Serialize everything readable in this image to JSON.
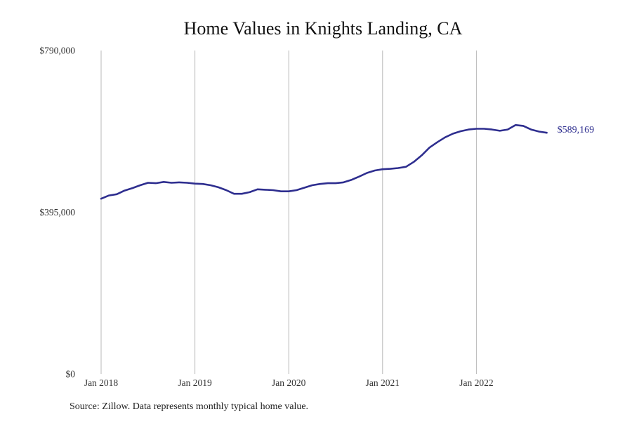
{
  "chart_data": {
    "type": "line",
    "title": "Home Values in Knights Landing, CA",
    "xlabel": "",
    "ylabel": "",
    "ylim": [
      0,
      790000
    ],
    "y_ticks": [
      {
        "value": 0,
        "label": "$0"
      },
      {
        "value": 395000,
        "label": "$395,000"
      },
      {
        "value": 790000,
        "label": "$790,000"
      }
    ],
    "x_ticks": [
      {
        "value": "2018-01",
        "label": "Jan 2018"
      },
      {
        "value": "2019-01",
        "label": "Jan 2019"
      },
      {
        "value": "2020-01",
        "label": "Jan 2020"
      },
      {
        "value": "2021-01",
        "label": "Jan 2021"
      },
      {
        "value": "2022-01",
        "label": "Jan 2022"
      }
    ],
    "grid": "vertical lines at x ticks",
    "series": [
      {
        "color": "#2e2e8f",
        "end_label": "$589,169",
        "x": [
          "2018-01",
          "2018-02",
          "2018-03",
          "2018-04",
          "2018-05",
          "2018-06",
          "2018-07",
          "2018-08",
          "2018-09",
          "2018-10",
          "2018-11",
          "2018-12",
          "2019-01",
          "2019-02",
          "2019-03",
          "2019-04",
          "2019-05",
          "2019-06",
          "2019-07",
          "2019-08",
          "2019-09",
          "2019-10",
          "2019-11",
          "2019-12",
          "2020-01",
          "2020-02",
          "2020-03",
          "2020-04",
          "2020-05",
          "2020-06",
          "2020-07",
          "2020-08",
          "2020-09",
          "2020-10",
          "2020-11",
          "2020-12",
          "2021-01",
          "2021-02",
          "2021-03",
          "2021-04",
          "2021-05",
          "2021-06",
          "2021-07",
          "2021-08",
          "2021-09",
          "2021-10",
          "2021-11",
          "2021-12",
          "2022-01",
          "2022-02",
          "2022-03",
          "2022-04",
          "2022-05",
          "2022-06",
          "2022-07",
          "2022-08",
          "2022-09",
          "2022-10"
        ],
        "values": [
          428000,
          436000,
          439000,
          448000,
          454000,
          461000,
          467000,
          466000,
          469000,
          467000,
          468000,
          467000,
          465000,
          464000,
          461000,
          456000,
          449000,
          440000,
          440000,
          444000,
          451000,
          450000,
          449000,
          446000,
          446000,
          449000,
          455000,
          461000,
          464000,
          466000,
          466000,
          468000,
          474000,
          482000,
          491000,
          497000,
          500000,
          501000,
          503000,
          506000,
          518000,
          534000,
          553000,
          566000,
          578000,
          587000,
          593000,
          597000,
          599000,
          599000,
          597000,
          594000,
          597000,
          608000,
          606000,
          597000,
          592000,
          589169
        ]
      }
    ]
  },
  "source": "Source: Zillow. Data represents monthly typical home value."
}
